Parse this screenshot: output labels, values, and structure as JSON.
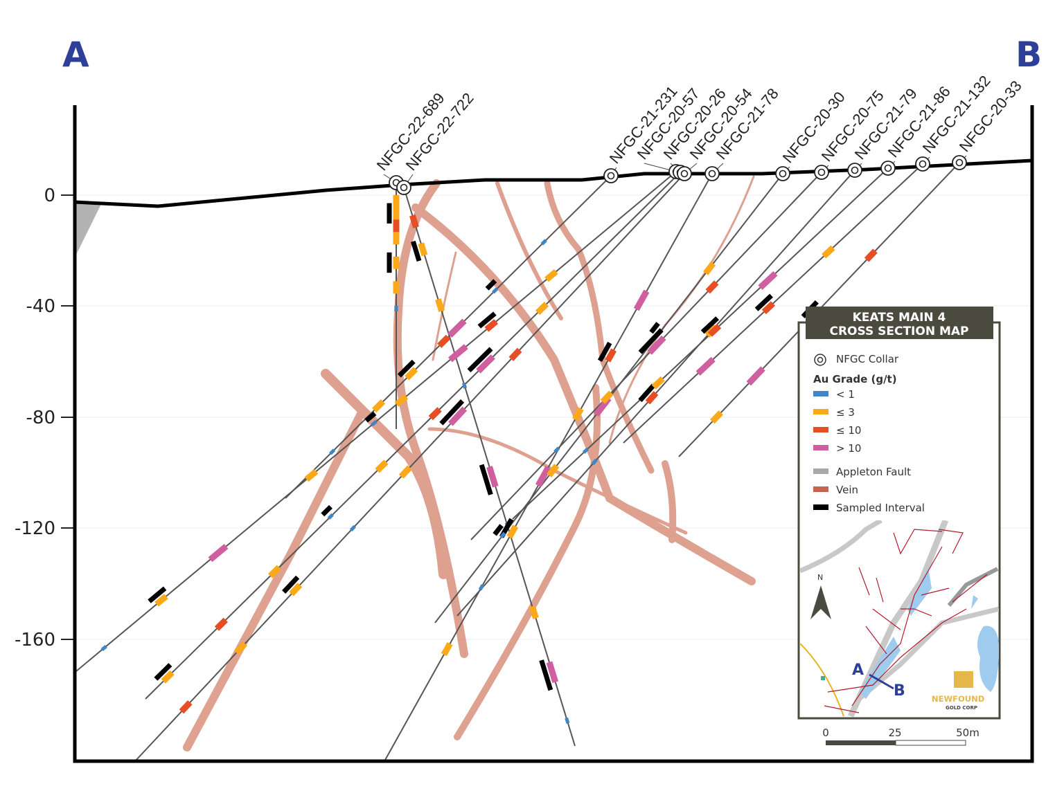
{
  "section_ends": {
    "left": "A",
    "right": "B"
  },
  "y_axis": {
    "ticks": [
      "0",
      "-40",
      "-80",
      "-120",
      "-160"
    ]
  },
  "drill_holes": [
    "NFGC-22-689",
    "NFGC-22-722",
    "NFGC-21-231",
    "NFGC-20-57",
    "NFGC-20-26",
    "NFGC-20-54",
    "NFGC-21-78",
    "NFGC-20-30",
    "NFGC-20-75",
    "NFGC-21-79",
    "NFGC-21-86",
    "NFGC-21-132",
    "NFGC-20-33"
  ],
  "legend": {
    "title_line1": "KEATS MAIN 4",
    "title_line2": "CROSS SECTION MAP",
    "collar": "NFGC Collar",
    "grade_title": "Au Grade (g/t)",
    "grades": [
      {
        "label": "< 1",
        "color": "#3f86c8"
      },
      {
        "label": "≤ 3",
        "color": "#fba919"
      },
      {
        "label": "≤ 10",
        "color": "#e84e26"
      },
      {
        "label": "> 10",
        "color": "#cf5f9e"
      }
    ],
    "features": [
      {
        "label": "Appleton Fault",
        "color": "#a7a9ac"
      },
      {
        "label": "Vein",
        "color": "#c9634f"
      },
      {
        "label": "Sampled Interval",
        "color": "#000000"
      }
    ]
  },
  "inset_map": {
    "north": "N",
    "point_a": "A",
    "point_b": "B",
    "logo_name": "NEWFOUND",
    "logo_sub": "GOLD CORP"
  },
  "scale_bar": {
    "labels": [
      "0",
      "25",
      "50m"
    ]
  },
  "colors": {
    "header": "#4b4a3f",
    "corner_letters": "#2e3f9a",
    "vein": "#d9907c",
    "hole": "#555555",
    "water": "#9fcbee"
  }
}
